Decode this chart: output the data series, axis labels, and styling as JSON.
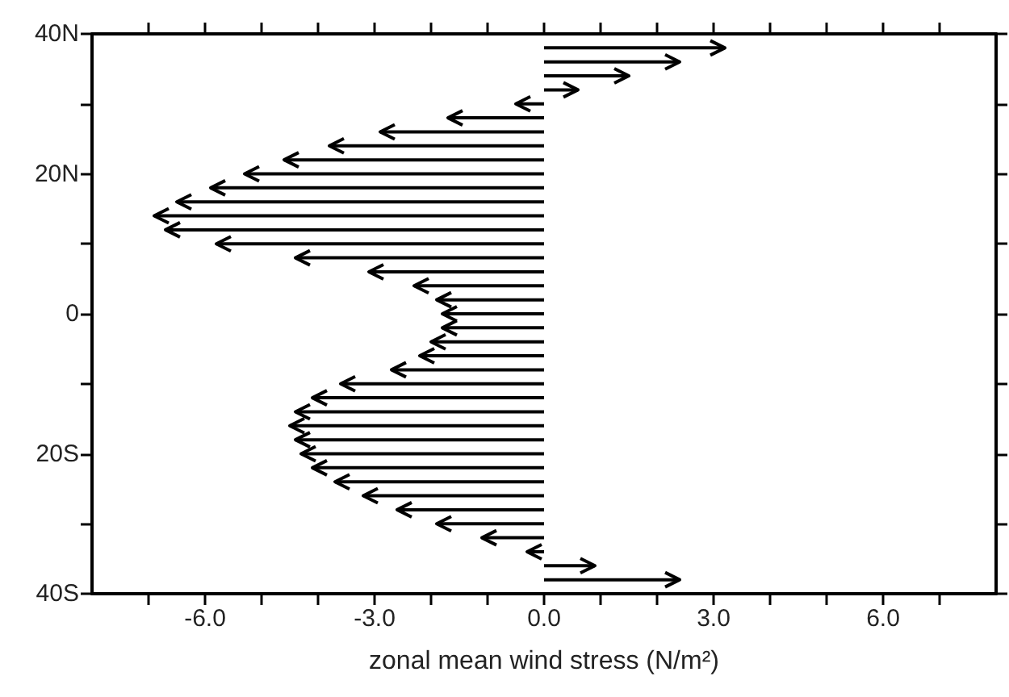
{
  "chart_data": {
    "type": "bar",
    "orientation": "horizontal",
    "xlabel": "zonal mean wind stress (N/m²)",
    "x": [
      38,
      36,
      34,
      32,
      30,
      28,
      26,
      24,
      22,
      20,
      18,
      16,
      14,
      12,
      10,
      8,
      6,
      4,
      2,
      0,
      -2,
      -4,
      -6,
      -8,
      -10,
      -12,
      -14,
      -16,
      -18,
      -20,
      -22,
      -24,
      -26,
      -28,
      -30,
      -32,
      -34,
      -36,
      -38
    ],
    "values": [
      3.2,
      2.4,
      1.5,
      0.6,
      -0.5,
      -1.7,
      -2.9,
      -3.8,
      -4.6,
      -5.3,
      -5.9,
      -6.5,
      -6.9,
      -6.7,
      -5.8,
      -4.4,
      -3.1,
      -2.3,
      -1.9,
      -1.8,
      -1.8,
      -2.0,
      -2.2,
      -2.7,
      -3.6,
      -4.1,
      -4.4,
      -4.5,
      -4.4,
      -4.3,
      -4.1,
      -3.7,
      -3.2,
      -2.6,
      -1.9,
      -1.1,
      -0.3,
      0.9,
      2.4
    ],
    "color": "#000000",
    "xlim": [
      -8,
      8
    ],
    "xticks": [
      {
        "value": -7,
        "label": null
      },
      {
        "value": -6,
        "label": "-6.0"
      },
      {
        "value": -5,
        "label": null
      },
      {
        "value": -4,
        "label": null
      },
      {
        "value": -3,
        "label": "-3.0"
      },
      {
        "value": -2,
        "label": null
      },
      {
        "value": -1,
        "label": null
      },
      {
        "value": 0,
        "label": "0.0"
      },
      {
        "value": 1,
        "label": null
      },
      {
        "value": 2,
        "label": null
      },
      {
        "value": 3,
        "label": "3.0"
      },
      {
        "value": 4,
        "label": null
      },
      {
        "value": 5,
        "label": null
      },
      {
        "value": 6,
        "label": "6.0"
      },
      {
        "value": 7,
        "label": null
      }
    ],
    "ylim": [
      -40,
      40
    ],
    "yticks": [
      {
        "value": -40,
        "label": "40S"
      },
      {
        "value": -30,
        "label": null
      },
      {
        "value": -20,
        "label": "20S"
      },
      {
        "value": -10,
        "label": null
      },
      {
        "value": 0,
        "label": "0"
      },
      {
        "value": 10,
        "label": null
      },
      {
        "value": 20,
        "label": "20N"
      },
      {
        "value": 30,
        "label": null
      },
      {
        "value": 40,
        "label": "40N"
      }
    ],
    "grid": false
  }
}
